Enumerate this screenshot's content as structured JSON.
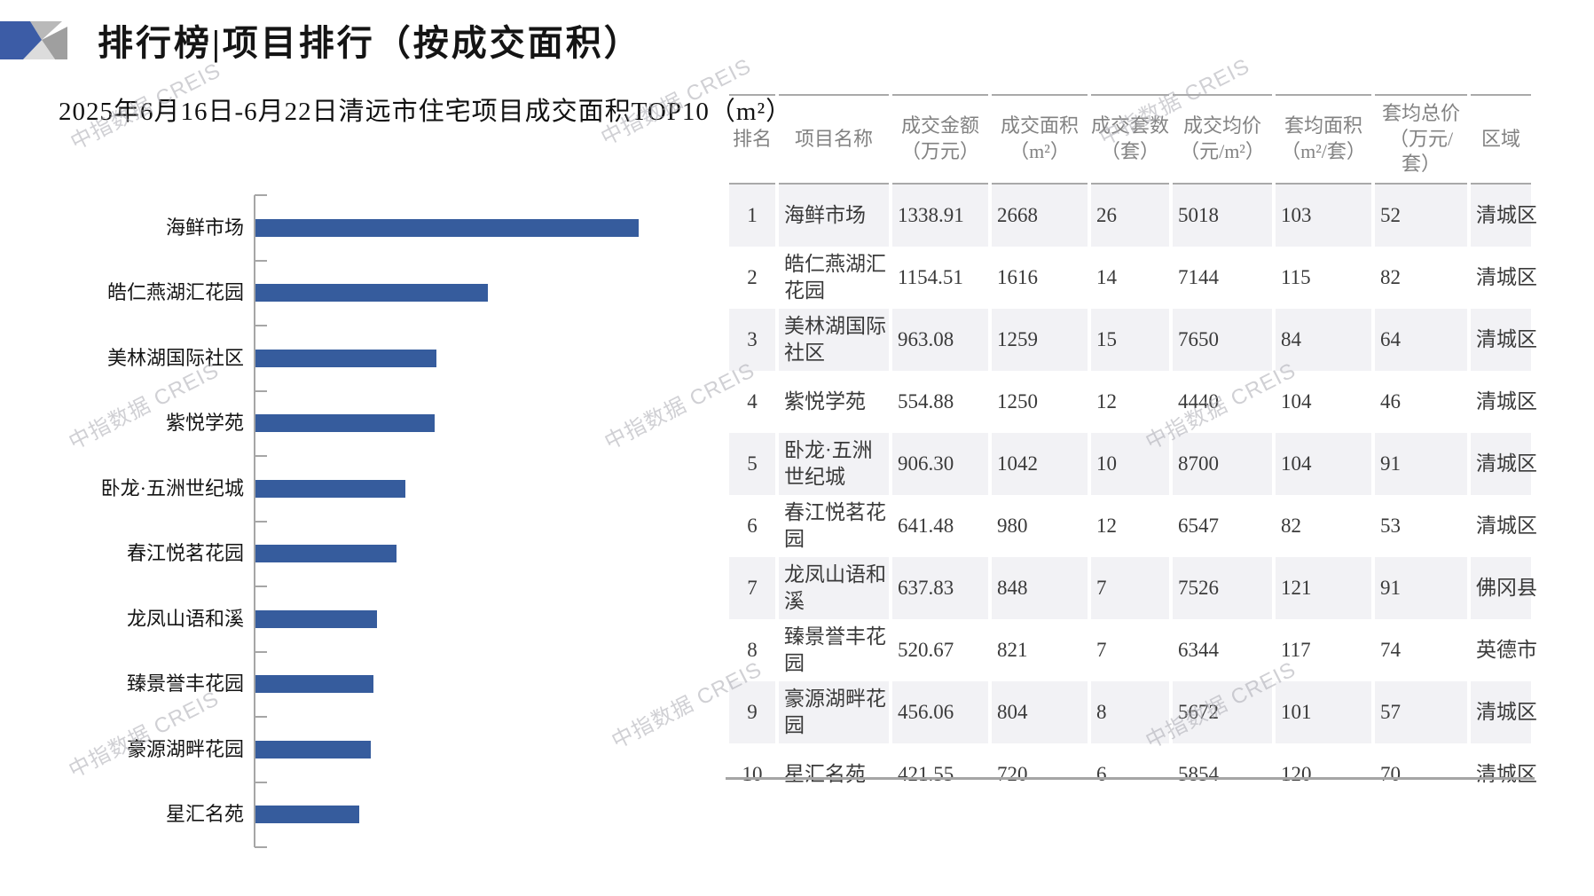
{
  "page": {
    "title": "排行榜|项目排行（按成交面积）",
    "subtitle": "2025年6月16日-6月22日清远市住宅项目成交面积TOP10（m²）",
    "watermark_text": "中指数据 CREIS"
  },
  "chart_data": {
    "type": "bar",
    "orientation": "horizontal",
    "title": "2025年6月16日-6月22日清远市住宅项目成交面积TOP10（m²）",
    "categories": [
      "海鲜市场",
      "皓仁燕湖汇花园",
      "美林湖国际社区",
      "紫悦学苑",
      "卧龙·五洲世纪城",
      "春江悦茗花园",
      "龙凤山语和溪",
      "臻景誉丰花园",
      "豪源湖畔花园",
      "星汇名苑"
    ],
    "values": [
      2668,
      1616,
      1259,
      1250,
      1042,
      980,
      848,
      821,
      804,
      720
    ],
    "unit": "m²",
    "xlabel": "",
    "ylabel": "",
    "xlim": [
      0,
      2800
    ],
    "grid": false,
    "legend": "none",
    "bar_color": "#365C9D",
    "axis_color": "#a6a6a6"
  },
  "table": {
    "headers": [
      {
        "label": "排名",
        "unit": ""
      },
      {
        "label": "项目名称",
        "unit": ""
      },
      {
        "label": "成交金额",
        "unit": "（万元）"
      },
      {
        "label": "成交面积",
        "unit": "（m²）"
      },
      {
        "label": "成交套数",
        "unit": "（套）"
      },
      {
        "label": "成交均价",
        "unit": "（元/m²）"
      },
      {
        "label": "套均面积",
        "unit": "（m²/套）"
      },
      {
        "label": "套均总价",
        "unit": "（万元/套）"
      },
      {
        "label": "区域",
        "unit": ""
      }
    ],
    "rows": [
      [
        "1",
        "海鲜市场",
        "1338.91",
        "2668",
        "26",
        "5018",
        "103",
        "52",
        "清城区"
      ],
      [
        "2",
        "皓仁燕湖汇花园",
        "1154.51",
        "1616",
        "14",
        "7144",
        "115",
        "82",
        "清城区"
      ],
      [
        "3",
        "美林湖国际社区",
        "963.08",
        "1259",
        "15",
        "7650",
        "84",
        "64",
        "清城区"
      ],
      [
        "4",
        "紫悦学苑",
        "554.88",
        "1250",
        "12",
        "4440",
        "104",
        "46",
        "清城区"
      ],
      [
        "5",
        "卧龙·五洲世纪城",
        "906.30",
        "1042",
        "10",
        "8700",
        "104",
        "91",
        "清城区"
      ],
      [
        "6",
        "春江悦茗花园",
        "641.48",
        "980",
        "12",
        "6547",
        "82",
        "53",
        "清城区"
      ],
      [
        "7",
        "龙凤山语和溪",
        "637.83",
        "848",
        "7",
        "7526",
        "121",
        "91",
        "佛冈县"
      ],
      [
        "8",
        "臻景誉丰花园",
        "520.67",
        "821",
        "7",
        "6344",
        "117",
        "74",
        "英德市"
      ],
      [
        "9",
        "豪源湖畔花园",
        "456.06",
        "804",
        "8",
        "5672",
        "101",
        "57",
        "清城区"
      ],
      [
        "10",
        "星汇名苑",
        "421.55",
        "720",
        "6",
        "5854",
        "120",
        "70",
        "清城区"
      ]
    ]
  },
  "colors": {
    "bar_blue": "#365C9D",
    "logo_blue": "#3C5CA6",
    "zebra_row": "#f2f2f5",
    "header_text": "#828282",
    "body_text": "#3a3a3a",
    "watermark": "#ababb2",
    "axis_gray": "#a6a6a6"
  }
}
